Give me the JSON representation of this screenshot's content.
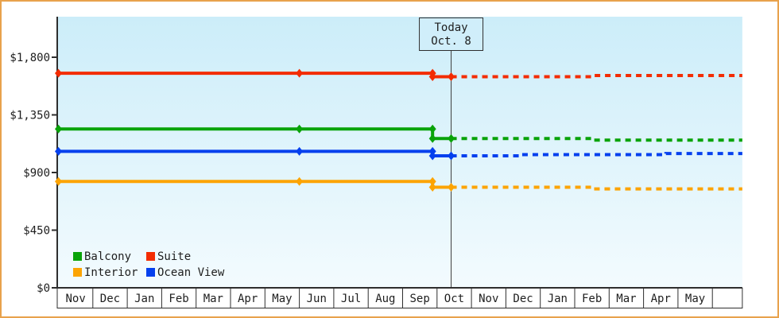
{
  "chart_data": {
    "type": "line",
    "title": "",
    "description": "Cruise cabin price history and dashed forecast by cabin category",
    "colors": {
      "frame": "#E8A24C",
      "plot_bg_top": "#CCEDF9",
      "plot_bg_bottom": "#F3FBFE",
      "axis": "#2E2E2E",
      "text": "#1E1E1E",
      "today_line": "#3C3C3C",
      "today_box_fill": "#D0EEFA",
      "month_cell_bg": "#FFFFFF"
    },
    "y_axis": {
      "ticks": [
        {
          "value": 0,
          "label": "$0"
        },
        {
          "value": 450,
          "label": "$450"
        },
        {
          "value": 900,
          "label": "$900"
        },
        {
          "value": 1350,
          "label": "$1,350"
        },
        {
          "value": 1800,
          "label": "$1,800"
        }
      ],
      "ylim": [
        0,
        2100
      ],
      "grid": false
    },
    "x_axis": {
      "months": [
        "Nov",
        "Dec",
        "Jan",
        "Feb",
        "Mar",
        "Apr",
        "May",
        "Jun",
        "Jul",
        "Aug",
        "Sep",
        "Oct",
        "Nov",
        "Dec",
        "Jan",
        "Feb",
        "Mar",
        "Apr",
        "May",
        ""
      ],
      "note": "m = months elapsed since first Nov"
    },
    "today": {
      "title": "Today",
      "date": "Oct. 8",
      "m": 11.41
    },
    "legend_position": "bottom-left inside plot",
    "series": [
      {
        "name": "Balcony",
        "color": "#09A309",
        "history": [
          {
            "date": "Nov 1",
            "m": 0,
            "price": 1240
          },
          {
            "date": "Jun 1",
            "m": 7,
            "price": 1240
          },
          {
            "date": "Sep 27",
            "m": 10.87,
            "price": 1240
          },
          {
            "date": "Sep 27",
            "m": 10.87,
            "price": 1165
          },
          {
            "date": "Oct 8",
            "m": 11.41,
            "price": 1165
          }
        ],
        "forecast": [
          {
            "date": "Oct 8",
            "m": 11.41,
            "price": 1165
          },
          {
            "date": "Feb 17",
            "m": 15.55,
            "price": 1165
          },
          {
            "date": "Feb 17",
            "m": 15.55,
            "price": 1153
          },
          {
            "date": "May 31",
            "m": 19.87,
            "price": 1153
          }
        ]
      },
      {
        "name": "Suite",
        "color": "#F32C02",
        "history": [
          {
            "date": "Nov 1",
            "m": 0,
            "price": 1675
          },
          {
            "date": "Jun 1",
            "m": 7,
            "price": 1675
          },
          {
            "date": "Sep 27",
            "m": 10.87,
            "price": 1675
          },
          {
            "date": "Sep 27",
            "m": 10.87,
            "price": 1648
          },
          {
            "date": "Oct 8",
            "m": 11.41,
            "price": 1648
          }
        ],
        "forecast": [
          {
            "date": "Oct 8",
            "m": 11.41,
            "price": 1648
          },
          {
            "date": "Feb 17",
            "m": 15.55,
            "price": 1648
          },
          {
            "date": "Feb 17",
            "m": 15.55,
            "price": 1657
          },
          {
            "date": "May 31",
            "m": 19.87,
            "price": 1657
          }
        ]
      },
      {
        "name": "Interior",
        "color": "#FCA404",
        "history": [
          {
            "date": "Nov 1",
            "m": 0,
            "price": 830
          },
          {
            "date": "Jun 1",
            "m": 7,
            "price": 830
          },
          {
            "date": "Sep 27",
            "m": 10.87,
            "price": 830
          },
          {
            "date": "Sep 27",
            "m": 10.87,
            "price": 785
          },
          {
            "date": "Oct 8",
            "m": 11.41,
            "price": 785
          }
        ],
        "forecast": [
          {
            "date": "Oct 8",
            "m": 11.41,
            "price": 785
          },
          {
            "date": "Feb 17",
            "m": 15.55,
            "price": 785
          },
          {
            "date": "Feb 17",
            "m": 15.55,
            "price": 772
          },
          {
            "date": "May 31",
            "m": 19.87,
            "price": 772
          }
        ]
      },
      {
        "name": "Ocean View",
        "color": "#0540EE",
        "history": [
          {
            "date": "Nov 1",
            "m": 0,
            "price": 1065
          },
          {
            "date": "Jun 1",
            "m": 7,
            "price": 1065
          },
          {
            "date": "Sep 27",
            "m": 10.87,
            "price": 1065
          },
          {
            "date": "Sep 27",
            "m": 10.87,
            "price": 1030
          },
          {
            "date": "Oct 8",
            "m": 11.41,
            "price": 1030
          }
        ],
        "forecast": [
          {
            "date": "Oct 8",
            "m": 11.41,
            "price": 1030
          },
          {
            "date": "Dec 14",
            "m": 13.45,
            "price": 1030
          },
          {
            "date": "Dec 14",
            "m": 13.45,
            "price": 1040
          },
          {
            "date": "Apr 20",
            "m": 17.65,
            "price": 1040
          },
          {
            "date": "Apr 20",
            "m": 17.65,
            "price": 1048
          },
          {
            "date": "May 31",
            "m": 19.87,
            "price": 1048
          }
        ]
      }
    ]
  }
}
